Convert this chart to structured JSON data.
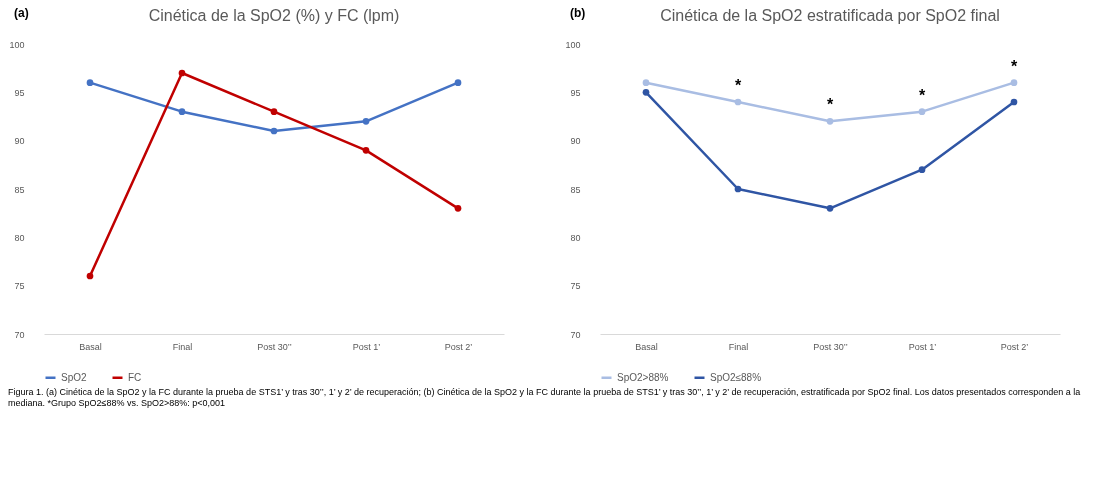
{
  "chart_data": [
    {
      "type": "line",
      "title": "Cinética de la SpO2 (%) y FC (lpm)",
      "categories": [
        "Basal",
        "Final",
        "Post 30’’",
        "Post 1’",
        "Post 2’"
      ],
      "series": [
        {
          "name": "SpO2",
          "color": "#4472c4",
          "values": [
            96,
            93,
            91,
            92,
            96
          ]
        },
        {
          "name": "FC",
          "color": "#c00000",
          "values": [
            76,
            97,
            93,
            89,
            83
          ]
        }
      ],
      "ylim": [
        70,
        100
      ],
      "yticks": [
        70,
        75,
        80,
        85,
        90,
        95,
        100
      ],
      "grid": false,
      "legend": "bottom",
      "marker": "circle",
      "annotations": [
        "(a)",
        "Figura 1. (a) Cinética de la SpO2 y la FC durante la prueba de STS1’ y tras 30’’, 1’ y 2’ de recuperación; (b) Cinética de la SpO2 y la FC durante la prueba de STS1’ y tras 30’’, 1’ y 2’ de recuperación, estratificada por SpO2 final. Los datos presentados corresponden a la mediana. *Grupo SpO2≤88% vs. SpO2>88%: p<0,001"
      ]
    },
    {
      "type": "line",
      "title": "Cinética de la SpO2 estratificada por SpO2 final",
      "categories": [
        "Basal",
        "Final",
        "Post 30’’",
        "Post 1’",
        "Post 2’"
      ],
      "series": [
        {
          "name": "SpO2>88%",
          "color": "#a9bde3",
          "values": [
            96,
            94,
            92,
            93,
            96
          ]
        },
        {
          "name": "SpO2≤88%",
          "color": "#2f55a4",
          "values": [
            95,
            85,
            83,
            87,
            94
          ]
        }
      ],
      "ylim": [
        70,
        100
      ],
      "yticks": [
        70,
        75,
        80,
        85,
        90,
        95,
        100
      ],
      "grid": false,
      "legend": "bottom",
      "marker": "circle",
      "annotations": [
        "(b)",
        {
          "text": "*",
          "x": "Final",
          "y": 94
        },
        {
          "text": "*",
          "x": "Post 30’’",
          "y": 92
        },
        {
          "text": "*",
          "x": "Post 1’",
          "y": 93
        },
        {
          "text": "*",
          "x": "Post 2’",
          "y": 96
        }
      ]
    }
  ]
}
